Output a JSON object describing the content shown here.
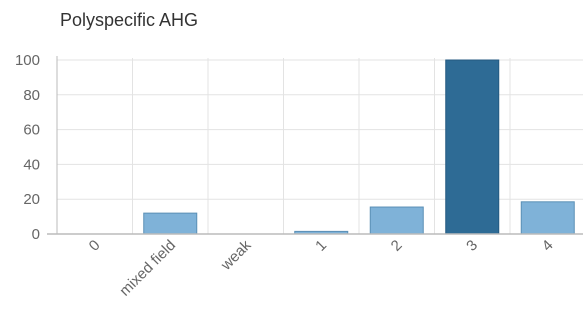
{
  "chart_data": {
    "type": "bar",
    "title": "Polyspecific AHG",
    "xlabel": "",
    "ylabel": "",
    "categories": [
      "0",
      "mixed field",
      "weak",
      "1",
      "2",
      "3",
      "4"
    ],
    "values": [
      0,
      12,
      0,
      1.5,
      15.5,
      100,
      18.5
    ],
    "ylim": [
      0,
      100
    ],
    "yticks": [
      0,
      20,
      40,
      60,
      80,
      100
    ],
    "grid": true,
    "legend": "none",
    "colors": {
      "bar": "#7fb2d8",
      "bar_highlight": "#2e6b95",
      "bar_stroke": "#5a8fb5",
      "grid": "#e3e3e3",
      "axis": "#bbbbbb"
    },
    "highlight_index": 5
  }
}
